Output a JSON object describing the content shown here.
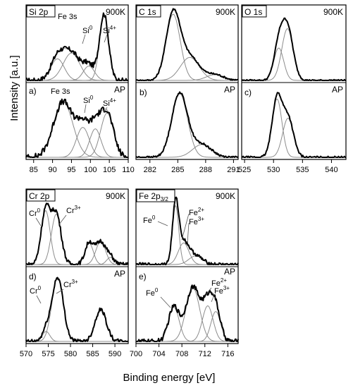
{
  "figure": {
    "y_axis_title": "Intensity [a.u.]",
    "x_axis_title": "Binding energy [eV]"
  },
  "chart_data": [
    {
      "type": "line",
      "element": "Si 2p",
      "xlim": [
        83,
        110
      ],
      "x_ticks": [
        85,
        90,
        95,
        100,
        105,
        110
      ],
      "rows": [
        {
          "condition": "900K",
          "label": "",
          "components": [
            {
              "name": "Fe 3s",
              "center": 95.0,
              "fwhm": 5.2,
              "height": 0.38
            },
            {
              "name": "",
              "center": 91.3,
              "fwhm": 4.2,
              "height": 0.3
            },
            {
              "name": "Si0",
              "center": 99.6,
              "fwhm": 3.5,
              "height": 0.2
            },
            {
              "name": "Si4+",
              "center": 103.6,
              "fwhm": 2.8,
              "height": 0.92
            }
          ],
          "annotations": [
            "Fe 3s",
            "Si0",
            "Si4+"
          ],
          "noise": 0.035
        },
        {
          "condition": "AP",
          "label": "a)",
          "components": [
            {
              "name": "Fe 3s",
              "center": 92.8,
              "fwhm": 6.0,
              "height": 0.78
            },
            {
              "name": "Si0",
              "center": 98.0,
              "fwhm": 4.0,
              "height": 0.42
            },
            {
              "name": "",
              "center": 101.3,
              "fwhm": 3.5,
              "height": 0.4
            },
            {
              "name": "Si4+",
              "center": 104.4,
              "fwhm": 4.0,
              "height": 0.62
            }
          ],
          "annotations": [
            "Fe 3s",
            "Si0",
            "Si4+"
          ],
          "noise": 0.045
        }
      ]
    },
    {
      "type": "line",
      "element": "C 1s",
      "xlim": [
        280.5,
        291.5
      ],
      "x_ticks": [
        282,
        285,
        288,
        291
      ],
      "rows": [
        {
          "condition": "900K",
          "label": "",
          "components": [
            {
              "name": "",
              "center": 284.5,
              "fwhm": 1.8,
              "height": 0.92
            },
            {
              "name": "",
              "center": 286.3,
              "fwhm": 2.4,
              "height": 0.32
            },
            {
              "name": "",
              "center": 289.0,
              "fwhm": 2.2,
              "height": 0.08
            }
          ],
          "annotations": [],
          "noise": 0.012
        },
        {
          "condition": "AP",
          "label": "b)",
          "components": [
            {
              "name": "",
              "center": 285.2,
              "fwhm": 2.0,
              "height": 0.9
            },
            {
              "name": "",
              "center": 287.6,
              "fwhm": 2.4,
              "height": 0.18
            }
          ],
          "annotations": [],
          "noise": 0.015
        }
      ]
    },
    {
      "type": "line",
      "element": "O 1s",
      "xlim": [
        524.5,
        542.5
      ],
      "x_ticks": [
        525,
        530,
        535,
        540
      ],
      "rows": [
        {
          "condition": "900K",
          "label": "",
          "components": [
            {
              "name": "",
              "center": 530.9,
              "fwhm": 2.0,
              "height": 0.45
            },
            {
              "name": "",
              "center": 532.4,
              "fwhm": 2.3,
              "height": 0.72
            }
          ],
          "annotations": [],
          "noise": 0.012
        },
        {
          "condition": "AP",
          "label": "c)",
          "components": [
            {
              "name": "",
              "center": 530.6,
              "fwhm": 2.0,
              "height": 0.82
            },
            {
              "name": "",
              "center": 532.5,
              "fwhm": 2.2,
              "height": 0.55
            }
          ],
          "annotations": [],
          "noise": 0.015
        }
      ]
    },
    {
      "type": "line",
      "element": "Cr 2p",
      "xlim": [
        570,
        593
      ],
      "x_ticks": [
        570,
        575,
        580,
        585,
        590
      ],
      "rows": [
        {
          "condition": "900K",
          "label": "",
          "components": [
            {
              "name": "Cr0",
              "center": 574.4,
              "fwhm": 2.4,
              "height": 0.75
            },
            {
              "name": "Cr3+",
              "center": 576.8,
              "fwhm": 2.6,
              "height": 0.7
            },
            {
              "name": "",
              "center": 584.2,
              "fwhm": 2.2,
              "height": 0.3
            },
            {
              "name": "",
              "center": 586.8,
              "fwhm": 2.6,
              "height": 0.32
            },
            {
              "name": "",
              "center": 589.0,
              "fwhm": 2.0,
              "height": 0.1
            }
          ],
          "annotations": [
            "Cr0",
            "Cr3+"
          ],
          "noise": 0.03
        },
        {
          "condition": "AP",
          "label": "d)",
          "components": [
            {
              "name": "Cr0",
              "center": 574.5,
              "fwhm": 2.0,
              "height": 0.14
            },
            {
              "name": "Cr3+",
              "center": 577.1,
              "fwhm": 3.0,
              "height": 0.9
            },
            {
              "name": "",
              "center": 586.8,
              "fwhm": 3.0,
              "height": 0.45
            }
          ],
          "annotations": [
            "Cr0",
            "Cr3+"
          ],
          "noise": 0.03
        }
      ]
    },
    {
      "type": "line",
      "element": "Fe 2p",
      "element_sub": "3/2",
      "xlim": [
        700,
        717.8
      ],
      "x_ticks": [
        700,
        704,
        708,
        712,
        716
      ],
      "rows": [
        {
          "condition": "900K",
          "label": "",
          "components": [
            {
              "name": "Fe0",
              "center": 706.9,
              "fwhm": 1.3,
              "height": 0.82
            },
            {
              "name": "Fe2+",
              "center": 708.3,
              "fwhm": 2.2,
              "height": 0.3
            },
            {
              "name": "Fe3+",
              "center": 710.4,
              "fwhm": 2.8,
              "height": 0.12
            }
          ],
          "annotations": [
            "Fe0",
            "Fe2+",
            "Fe3+"
          ],
          "noise": 0.025
        },
        {
          "condition": "AP",
          "label": "e)",
          "components": [
            {
              "name": "Fe0",
              "center": 706.6,
              "fwhm": 2.2,
              "height": 0.48
            },
            {
              "name": "",
              "center": 709.9,
              "fwhm": 2.8,
              "height": 0.76
            },
            {
              "name": "Fe2+",
              "center": 712.5,
              "fwhm": 2.2,
              "height": 0.5
            },
            {
              "name": "Fe3+",
              "center": 713.9,
              "fwhm": 2.0,
              "height": 0.42
            }
          ],
          "annotations": [
            "Fe0",
            "Fe2+",
            "Fe3+"
          ],
          "noise": 0.035
        }
      ]
    }
  ]
}
